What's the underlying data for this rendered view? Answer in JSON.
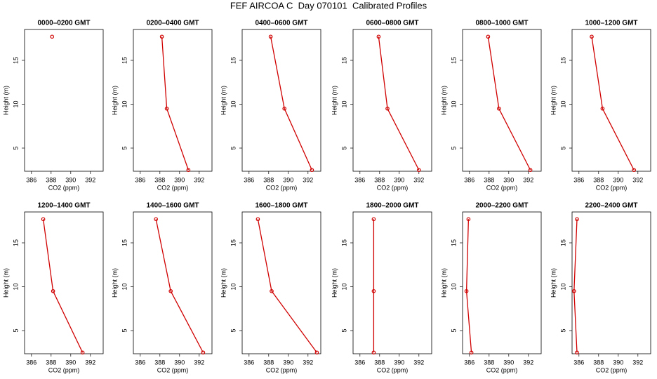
{
  "title": "FEF AIRCOA C  Day 070101  Calibrated Profiles",
  "chart_data": [
    {
      "type": "line",
      "title": "0000–0200 GMT",
      "xlabel": "CO2 (ppm)",
      "ylabel": "Height (m)",
      "xlim": [
        385.3,
        393.3
      ],
      "ylim": [
        2.36,
        18.52
      ],
      "xticks": [
        386,
        388,
        390,
        392
      ],
      "yticks": [
        5,
        10,
        15
      ],
      "x": [
        null,
        null,
        388.1
      ],
      "values": [
        null,
        null,
        17.7
      ],
      "color": "#d00000"
    },
    {
      "type": "line",
      "title": "0200–0400 GMT",
      "xlabel": "CO2 (ppm)",
      "ylabel": "Height (m)",
      "xlim": [
        385.3,
        393.3
      ],
      "ylim": [
        2.36,
        18.52
      ],
      "xticks": [
        386,
        388,
        390,
        392
      ],
      "yticks": [
        5,
        10,
        15
      ],
      "x": [
        390.9,
        388.7,
        388.2
      ],
      "values": [
        2.5,
        9.5,
        17.7
      ],
      "color": "#d00000"
    },
    {
      "type": "line",
      "title": "0400–0600 GMT",
      "xlabel": "CO2 (ppm)",
      "ylabel": "Height (m)",
      "xlim": [
        385.3,
        393.3
      ],
      "ylim": [
        2.36,
        18.52
      ],
      "xticks": [
        386,
        388,
        390,
        392
      ],
      "yticks": [
        5,
        10,
        15
      ],
      "x": [
        392.4,
        389.6,
        388.2
      ],
      "values": [
        2.5,
        9.5,
        17.7
      ],
      "color": "#d00000"
    },
    {
      "type": "line",
      "title": "0600–0800 GMT",
      "xlabel": "CO2 (ppm)",
      "ylabel": "Height (m)",
      "xlim": [
        385.3,
        393.3
      ],
      "ylim": [
        2.36,
        18.52
      ],
      "xticks": [
        386,
        388,
        390,
        392
      ],
      "yticks": [
        5,
        10,
        15
      ],
      "x": [
        392.0,
        388.8,
        387.9
      ],
      "values": [
        2.5,
        9.5,
        17.7
      ],
      "color": "#d00000"
    },
    {
      "type": "line",
      "title": "0800–1000 GMT",
      "xlabel": "CO2 (ppm)",
      "ylabel": "Height (m)",
      "xlim": [
        385.3,
        393.3
      ],
      "ylim": [
        2.36,
        18.52
      ],
      "xticks": [
        386,
        388,
        390,
        392
      ],
      "yticks": [
        5,
        10,
        15
      ],
      "x": [
        392.2,
        389.0,
        387.9
      ],
      "values": [
        2.5,
        9.5,
        17.7
      ],
      "color": "#d00000"
    },
    {
      "type": "line",
      "title": "1000–1200 GMT",
      "xlabel": "CO2 (ppm)",
      "ylabel": "Height (m)",
      "xlim": [
        385.3,
        393.3
      ],
      "ylim": [
        2.36,
        18.52
      ],
      "xticks": [
        386,
        388,
        390,
        392
      ],
      "yticks": [
        5,
        10,
        15
      ],
      "x": [
        391.6,
        388.4,
        387.3
      ],
      "values": [
        2.5,
        9.5,
        17.7
      ],
      "color": "#d00000"
    },
    {
      "type": "line",
      "title": "1200–1400 GMT",
      "xlabel": "CO2 (ppm)",
      "ylabel": "Height (m)",
      "xlim": [
        385.3,
        393.3
      ],
      "ylim": [
        2.36,
        18.52
      ],
      "xticks": [
        386,
        388,
        390,
        392
      ],
      "yticks": [
        5,
        10,
        15
      ],
      "x": [
        391.2,
        388.2,
        387.2
      ],
      "values": [
        2.5,
        9.5,
        17.7
      ],
      "color": "#d00000"
    },
    {
      "type": "line",
      "title": "1400–1600 GMT",
      "xlabel": "CO2 (ppm)",
      "ylabel": "Height (m)",
      "xlim": [
        385.3,
        393.3
      ],
      "ylim": [
        2.36,
        18.52
      ],
      "xticks": [
        386,
        388,
        390,
        392
      ],
      "yticks": [
        5,
        10,
        15
      ],
      "x": [
        392.4,
        389.1,
        387.6
      ],
      "values": [
        2.5,
        9.5,
        17.7
      ],
      "color": "#d00000"
    },
    {
      "type": "line",
      "title": "1600–1800 GMT",
      "xlabel": "CO2 (ppm)",
      "ylabel": "Height (m)",
      "xlim": [
        385.3,
        393.3
      ],
      "ylim": [
        2.36,
        18.52
      ],
      "xticks": [
        386,
        388,
        390,
        392
      ],
      "yticks": [
        5,
        10,
        15
      ],
      "x": [
        392.9,
        388.3,
        386.9
      ],
      "values": [
        2.5,
        9.5,
        17.7
      ],
      "color": "#d00000"
    },
    {
      "type": "line",
      "title": "1800–2000 GMT",
      "xlabel": "CO2 (ppm)",
      "ylabel": "Height (m)",
      "xlim": [
        385.3,
        393.3
      ],
      "ylim": [
        2.36,
        18.52
      ],
      "xticks": [
        386,
        388,
        390,
        392
      ],
      "yticks": [
        5,
        10,
        15
      ],
      "x": [
        387.4,
        387.4,
        387.4
      ],
      "values": [
        2.5,
        9.5,
        17.7
      ],
      "color": "#d00000"
    },
    {
      "type": "line",
      "title": "2000–2200 GMT",
      "xlabel": "CO2 (ppm)",
      "ylabel": "Height (m)",
      "xlim": [
        385.3,
        393.3
      ],
      "ylim": [
        2.36,
        18.52
      ],
      "xticks": [
        386,
        388,
        390,
        392
      ],
      "yticks": [
        5,
        10,
        15
      ],
      "x": [
        386.2,
        385.7,
        385.9
      ],
      "values": [
        2.5,
        9.5,
        17.7
      ],
      "color": "#d00000"
    },
    {
      "type": "line",
      "title": "2200–2400 GMT",
      "xlabel": "CO2 (ppm)",
      "ylabel": "Height (m)",
      "xlim": [
        385.3,
        393.3
      ],
      "ylim": [
        2.36,
        18.52
      ],
      "xticks": [
        386,
        388,
        390,
        392
      ],
      "yticks": [
        5,
        10,
        15
      ],
      "x": [
        385.8,
        385.5,
        385.8
      ],
      "values": [
        2.5,
        9.5,
        17.7
      ],
      "color": "#d00000"
    }
  ]
}
